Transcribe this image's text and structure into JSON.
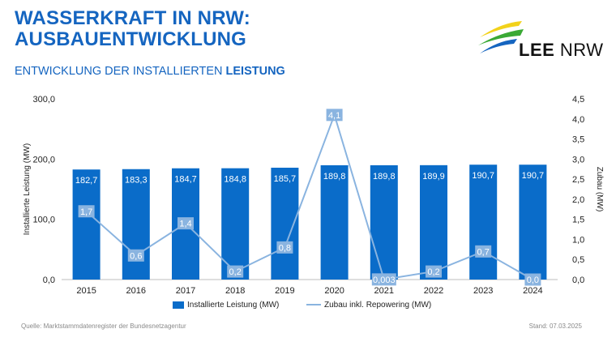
{
  "header": {
    "title_line1": "WASSERKRAFT IN NRW:",
    "title_line2": "AUSBAUENTWICKLUNG",
    "subtitle_prefix": "ENTWICKLUNG DER INSTALLIERTEN ",
    "subtitle_bold": "LEISTUNG"
  },
  "logo": {
    "text_bold": "LEE",
    "text_regular": " NRW",
    "colors": [
      "#f2d21b",
      "#3aa935",
      "#1565c0"
    ]
  },
  "colors": {
    "bar": "#0a6cc9",
    "line": "#8ab4e0",
    "marker": "#8ab4e0",
    "title": "#1565c0"
  },
  "chart_data": {
    "type": "bar+line",
    "categories": [
      "2015",
      "2016",
      "2017",
      "2018",
      "2019",
      "2020",
      "2021",
      "2022",
      "2023",
      "2024"
    ],
    "series": [
      {
        "name": "Installierte Leistung (MW)",
        "type": "bar",
        "axis": "left",
        "values": [
          182.7,
          183.3,
          184.7,
          184.8,
          185.7,
          189.8,
          189.8,
          189.9,
          190.7,
          190.7
        ],
        "labels": [
          "182,7",
          "183,3",
          "184,7",
          "184,8",
          "185,7",
          "189,8",
          "189,8",
          "189,9",
          "190,7",
          "190,7"
        ]
      },
      {
        "name": "Zubau inkl. Repowering (MW)",
        "type": "line",
        "axis": "right",
        "values": [
          1.7,
          0.6,
          1.4,
          0.2,
          0.8,
          4.1,
          0.003,
          0.2,
          0.7,
          0.0
        ],
        "labels": [
          "1,7",
          "0,6",
          "1,4",
          "0,2",
          "0,8",
          "4,1",
          "0,003",
          "0,2",
          "0,7",
          "0,0"
        ]
      }
    ],
    "ylabel": "Installierte Leistung (MW)",
    "y2label": "Zubau (MW)",
    "ylim": [
      0,
      300
    ],
    "y_ticks": [
      "0,0",
      "100,0",
      "200,0",
      "300,0"
    ],
    "y2lim": [
      0,
      4.5
    ],
    "y2_ticks": [
      "0,0",
      "0,5",
      "1,0",
      "1,5",
      "2,0",
      "2,5",
      "3,0",
      "3,5",
      "4,0",
      "4,5"
    ],
    "grid": false,
    "legend": "bottom"
  },
  "footer": {
    "source": "Quelle: Marktstammdatenregister der Bundesnetzagentur",
    "date": "Stand: 07.03.2025"
  }
}
